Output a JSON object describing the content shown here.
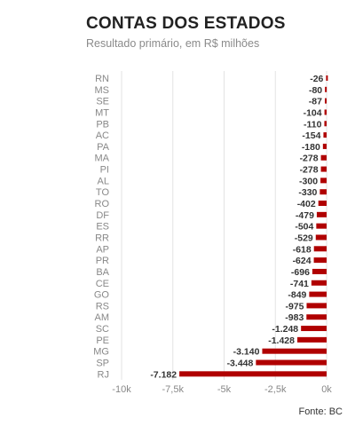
{
  "title": "CONTAS DOS ESTADOS",
  "subtitle": "Resultado primário, em R$ milhões",
  "source": "Fonte: BC",
  "colors": {
    "bar": "#b00000",
    "grid": "#e3e3e3",
    "label": "#888888",
    "value": "#333333"
  },
  "chart_data": {
    "type": "bar",
    "orientation": "horizontal",
    "title": "CONTAS DOS ESTADOS",
    "subtitle": "Resultado primário, em R$ milhões",
    "categories": [
      "RN",
      "MS",
      "SE",
      "MT",
      "PB",
      "AC",
      "PA",
      "MA",
      "PI",
      "AL",
      "TO",
      "RO",
      "DF",
      "ES",
      "RR",
      "AP",
      "PR",
      "BA",
      "CE",
      "GO",
      "RS",
      "AM",
      "SC",
      "PE",
      "MG",
      "SP",
      "RJ"
    ],
    "values": [
      -26,
      -80,
      -87,
      -104,
      -110,
      -154,
      -180,
      -278,
      -278,
      -300,
      -330,
      -402,
      -479,
      -504,
      -529,
      -618,
      -624,
      -696,
      -741,
      -849,
      -975,
      -983,
      -1248,
      -1428,
      -3140,
      -3448,
      -7182
    ],
    "value_labels": [
      "-26",
      "-80",
      "-87",
      "-104",
      "-110",
      "-154",
      "-180",
      "-278",
      "-278",
      "-300",
      "-330",
      "-402",
      "-479",
      "-504",
      "-529",
      "-618",
      "-624",
      "-696",
      "-741",
      "-849",
      "-975",
      "-983",
      "-1.248",
      "-1.428",
      "-3.140",
      "-3.448",
      "-7.182"
    ],
    "xlim": [
      -10000,
      0
    ],
    "xticks": [
      -10000,
      -7500,
      -5000,
      -2500,
      0
    ],
    "xtick_labels": [
      "-10k",
      "-7,5k",
      "-5k",
      "-2,5k",
      "0k"
    ],
    "grid": true,
    "legend": "none"
  }
}
